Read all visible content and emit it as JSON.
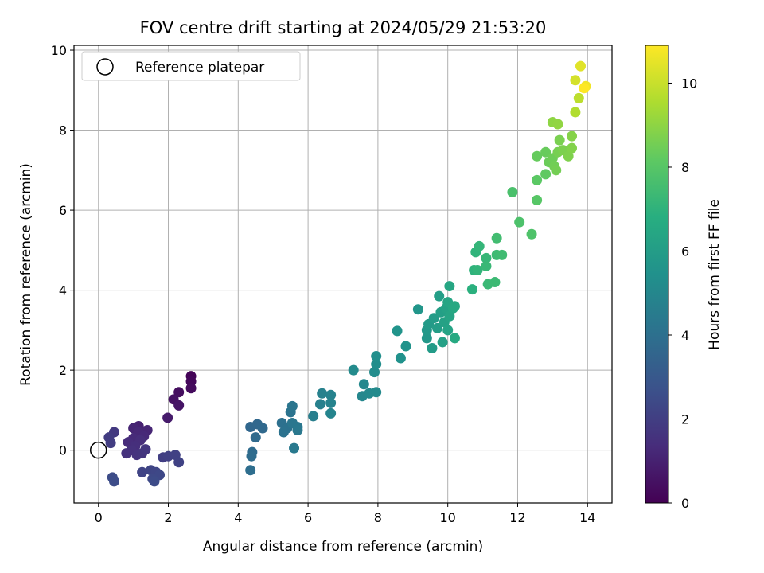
{
  "chart_data": {
    "type": "scatter",
    "title": "FOV centre drift starting at 2024/05/29 21:53:20",
    "xlabel": "Angular distance from reference (arcmin)",
    "ylabel": "Rotation from reference (arcmin)",
    "xlim": [
      -0.7,
      14.7
    ],
    "ylim": [
      -1.32,
      10.12
    ],
    "xticks": [
      0,
      2,
      4,
      6,
      8,
      10,
      12,
      14
    ],
    "yticks": [
      0,
      2,
      4,
      6,
      8,
      10
    ],
    "grid": true,
    "legend": {
      "placement": "top-left",
      "entries": [
        "Reference platepar"
      ]
    },
    "reference_point": {
      "x": 0,
      "y": 0,
      "name": "Reference platepar"
    },
    "colorbar": {
      "label": "Hours from first FF file",
      "colormap": "viridis",
      "range": [
        0,
        10.9
      ],
      "ticks": [
        0,
        2,
        4,
        6,
        8,
        10
      ]
    },
    "series": [
      {
        "points": [
          {
            "x": 2.65,
            "y": 1.85,
            "t": 0.1
          },
          {
            "x": 2.65,
            "y": 1.72,
            "t": 0.2
          },
          {
            "x": 2.65,
            "y": 1.55,
            "t": 0.3
          },
          {
            "x": 2.3,
            "y": 1.45,
            "t": 0.4
          },
          {
            "x": 2.15,
            "y": 1.27,
            "t": 0.5
          },
          {
            "x": 2.3,
            "y": 1.12,
            "t": 0.6
          },
          {
            "x": 1.98,
            "y": 0.81,
            "t": 0.8
          },
          {
            "x": 1.15,
            "y": 0.6,
            "t": 1.0
          },
          {
            "x": 1.0,
            "y": 0.55,
            "t": 1.1
          },
          {
            "x": 1.4,
            "y": 0.5,
            "t": 1.15
          },
          {
            "x": 1.15,
            "y": 0.45,
            "t": 1.2
          },
          {
            "x": 1.3,
            "y": 0.35,
            "t": 1.25
          },
          {
            "x": 1.0,
            "y": 0.3,
            "t": 1.3
          },
          {
            "x": 0.85,
            "y": 0.2,
            "t": 1.35
          },
          {
            "x": 1.2,
            "y": 0.25,
            "t": 1.4
          },
          {
            "x": 1.05,
            "y": 0.1,
            "t": 1.45
          },
          {
            "x": 0.95,
            "y": 0.0,
            "t": 1.5
          },
          {
            "x": 0.8,
            "y": -0.08,
            "t": 1.55
          },
          {
            "x": 1.1,
            "y": -0.12,
            "t": 1.6
          },
          {
            "x": 1.25,
            "y": -0.08,
            "t": 1.65
          },
          {
            "x": 1.35,
            "y": 0.02,
            "t": 1.7
          },
          {
            "x": 0.45,
            "y": 0.45,
            "t": 1.8
          },
          {
            "x": 0.3,
            "y": 0.32,
            "t": 1.9
          },
          {
            "x": 0.35,
            "y": 0.18,
            "t": 1.95
          },
          {
            "x": 1.85,
            "y": -0.18,
            "t": 2.0
          },
          {
            "x": 2.0,
            "y": -0.15,
            "t": 2.05
          },
          {
            "x": 2.2,
            "y": -0.12,
            "t": 2.1
          },
          {
            "x": 2.3,
            "y": -0.3,
            "t": 2.15
          },
          {
            "x": 1.25,
            "y": -0.55,
            "t": 2.2
          },
          {
            "x": 1.5,
            "y": -0.5,
            "t": 2.25
          },
          {
            "x": 1.65,
            "y": -0.55,
            "t": 2.3
          },
          {
            "x": 1.75,
            "y": -0.62,
            "t": 2.35
          },
          {
            "x": 1.55,
            "y": -0.72,
            "t": 2.4
          },
          {
            "x": 1.6,
            "y": -0.78,
            "t": 2.45
          },
          {
            "x": 0.4,
            "y": -0.68,
            "t": 2.5
          },
          {
            "x": 0.45,
            "y": -0.78,
            "t": 2.55
          },
          {
            "x": 4.35,
            "y": 0.58,
            "t": 3.6
          },
          {
            "x": 4.55,
            "y": 0.65,
            "t": 3.65
          },
          {
            "x": 4.7,
            "y": 0.55,
            "t": 3.7
          },
          {
            "x": 4.5,
            "y": 0.32,
            "t": 3.75
          },
          {
            "x": 4.4,
            "y": -0.05,
            "t": 3.8
          },
          {
            "x": 4.38,
            "y": -0.15,
            "t": 3.85
          },
          {
            "x": 4.35,
            "y": -0.5,
            "t": 3.9
          },
          {
            "x": 5.25,
            "y": 0.68,
            "t": 4.0
          },
          {
            "x": 5.4,
            "y": 0.55,
            "t": 4.05
          },
          {
            "x": 5.3,
            "y": 0.45,
            "t": 4.1
          },
          {
            "x": 5.5,
            "y": 0.95,
            "t": 4.15
          },
          {
            "x": 5.55,
            "y": 1.1,
            "t": 4.2
          },
          {
            "x": 5.55,
            "y": 0.68,
            "t": 4.25
          },
          {
            "x": 5.7,
            "y": 0.58,
            "t": 4.3
          },
          {
            "x": 5.7,
            "y": 0.5,
            "t": 4.35
          },
          {
            "x": 5.6,
            "y": 0.05,
            "t": 4.4
          },
          {
            "x": 6.15,
            "y": 0.85,
            "t": 4.6
          },
          {
            "x": 6.35,
            "y": 1.15,
            "t": 4.7
          },
          {
            "x": 6.4,
            "y": 1.42,
            "t": 4.75
          },
          {
            "x": 6.65,
            "y": 1.38,
            "t": 4.8
          },
          {
            "x": 6.65,
            "y": 1.18,
            "t": 4.85
          },
          {
            "x": 6.65,
            "y": 0.92,
            "t": 4.9
          },
          {
            "x": 7.55,
            "y": 1.35,
            "t": 5.0
          },
          {
            "x": 7.6,
            "y": 1.65,
            "t": 5.05
          },
          {
            "x": 7.75,
            "y": 1.42,
            "t": 5.1
          },
          {
            "x": 7.95,
            "y": 1.45,
            "t": 5.15
          },
          {
            "x": 7.3,
            "y": 2.0,
            "t": 5.2
          },
          {
            "x": 7.9,
            "y": 1.95,
            "t": 5.25
          },
          {
            "x": 7.95,
            "y": 2.15,
            "t": 5.3
          },
          {
            "x": 7.95,
            "y": 2.35,
            "t": 5.35
          },
          {
            "x": 8.65,
            "y": 2.3,
            "t": 5.5
          },
          {
            "x": 8.8,
            "y": 2.6,
            "t": 5.55
          },
          {
            "x": 8.55,
            "y": 2.98,
            "t": 5.6
          },
          {
            "x": 9.15,
            "y": 3.52,
            "t": 5.7
          },
          {
            "x": 9.4,
            "y": 2.8,
            "t": 5.75
          },
          {
            "x": 9.4,
            "y": 3.0,
            "t": 5.8
          },
          {
            "x": 9.45,
            "y": 3.15,
            "t": 5.85
          },
          {
            "x": 9.55,
            "y": 2.55,
            "t": 5.9
          },
          {
            "x": 9.6,
            "y": 3.3,
            "t": 5.95
          },
          {
            "x": 9.7,
            "y": 3.05,
            "t": 6.0
          },
          {
            "x": 9.75,
            "y": 3.85,
            "t": 6.05
          },
          {
            "x": 9.8,
            "y": 3.45,
            "t": 6.1
          },
          {
            "x": 9.85,
            "y": 2.7,
            "t": 6.15
          },
          {
            "x": 9.9,
            "y": 3.2,
            "t": 6.2
          },
          {
            "x": 9.95,
            "y": 3.55,
            "t": 6.25
          },
          {
            "x": 10.0,
            "y": 3.0,
            "t": 6.3
          },
          {
            "x": 10.05,
            "y": 3.35,
            "t": 6.35
          },
          {
            "x": 10.0,
            "y": 3.7,
            "t": 6.4
          },
          {
            "x": 10.05,
            "y": 4.1,
            "t": 6.45
          },
          {
            "x": 10.15,
            "y": 3.55,
            "t": 6.5
          },
          {
            "x": 10.2,
            "y": 3.6,
            "t": 6.55
          },
          {
            "x": 10.2,
            "y": 2.8,
            "t": 6.6
          },
          {
            "x": 10.7,
            "y": 4.02,
            "t": 6.9
          },
          {
            "x": 10.75,
            "y": 4.5,
            "t": 7.0
          },
          {
            "x": 10.8,
            "y": 4.95,
            "t": 7.05
          },
          {
            "x": 10.85,
            "y": 4.5,
            "t": 7.1
          },
          {
            "x": 10.9,
            "y": 5.1,
            "t": 7.15
          },
          {
            "x": 11.1,
            "y": 4.8,
            "t": 7.2
          },
          {
            "x": 11.1,
            "y": 4.6,
            "t": 7.25
          },
          {
            "x": 11.15,
            "y": 4.15,
            "t": 7.3
          },
          {
            "x": 11.35,
            "y": 4.2,
            "t": 7.35
          },
          {
            "x": 11.4,
            "y": 4.88,
            "t": 7.4
          },
          {
            "x": 11.55,
            "y": 4.88,
            "t": 7.45
          },
          {
            "x": 11.4,
            "y": 5.3,
            "t": 7.5
          },
          {
            "x": 11.85,
            "y": 6.45,
            "t": 7.7
          },
          {
            "x": 12.05,
            "y": 5.7,
            "t": 7.75
          },
          {
            "x": 12.4,
            "y": 5.4,
            "t": 7.8
          },
          {
            "x": 12.55,
            "y": 6.25,
            "t": 8.0
          },
          {
            "x": 12.55,
            "y": 6.75,
            "t": 8.1
          },
          {
            "x": 12.8,
            "y": 6.9,
            "t": 8.2
          },
          {
            "x": 12.55,
            "y": 7.35,
            "t": 8.3
          },
          {
            "x": 12.8,
            "y": 7.45,
            "t": 8.35
          },
          {
            "x": 12.9,
            "y": 7.2,
            "t": 8.4
          },
          {
            "x": 13.0,
            "y": 7.3,
            "t": 8.45
          },
          {
            "x": 13.05,
            "y": 7.1,
            "t": 8.5
          },
          {
            "x": 13.1,
            "y": 7.0,
            "t": 8.55
          },
          {
            "x": 13.15,
            "y": 7.45,
            "t": 8.6
          },
          {
            "x": 13.2,
            "y": 7.75,
            "t": 8.65
          },
          {
            "x": 13.3,
            "y": 7.5,
            "t": 8.7
          },
          {
            "x": 13.45,
            "y": 7.35,
            "t": 8.75
          },
          {
            "x": 13.55,
            "y": 7.55,
            "t": 8.8
          },
          {
            "x": 13.55,
            "y": 7.85,
            "t": 8.85
          },
          {
            "x": 13.0,
            "y": 8.2,
            "t": 9.0
          },
          {
            "x": 13.15,
            "y": 8.15,
            "t": 9.05
          },
          {
            "x": 13.65,
            "y": 8.45,
            "t": 9.6
          },
          {
            "x": 13.75,
            "y": 8.8,
            "t": 9.8
          },
          {
            "x": 13.65,
            "y": 9.25,
            "t": 10.2
          },
          {
            "x": 13.8,
            "y": 9.6,
            "t": 10.4
          },
          {
            "x": 13.95,
            "y": 9.1,
            "t": 10.7
          },
          {
            "x": 13.9,
            "y": 9.05,
            "t": 10.9
          }
        ]
      }
    ]
  }
}
